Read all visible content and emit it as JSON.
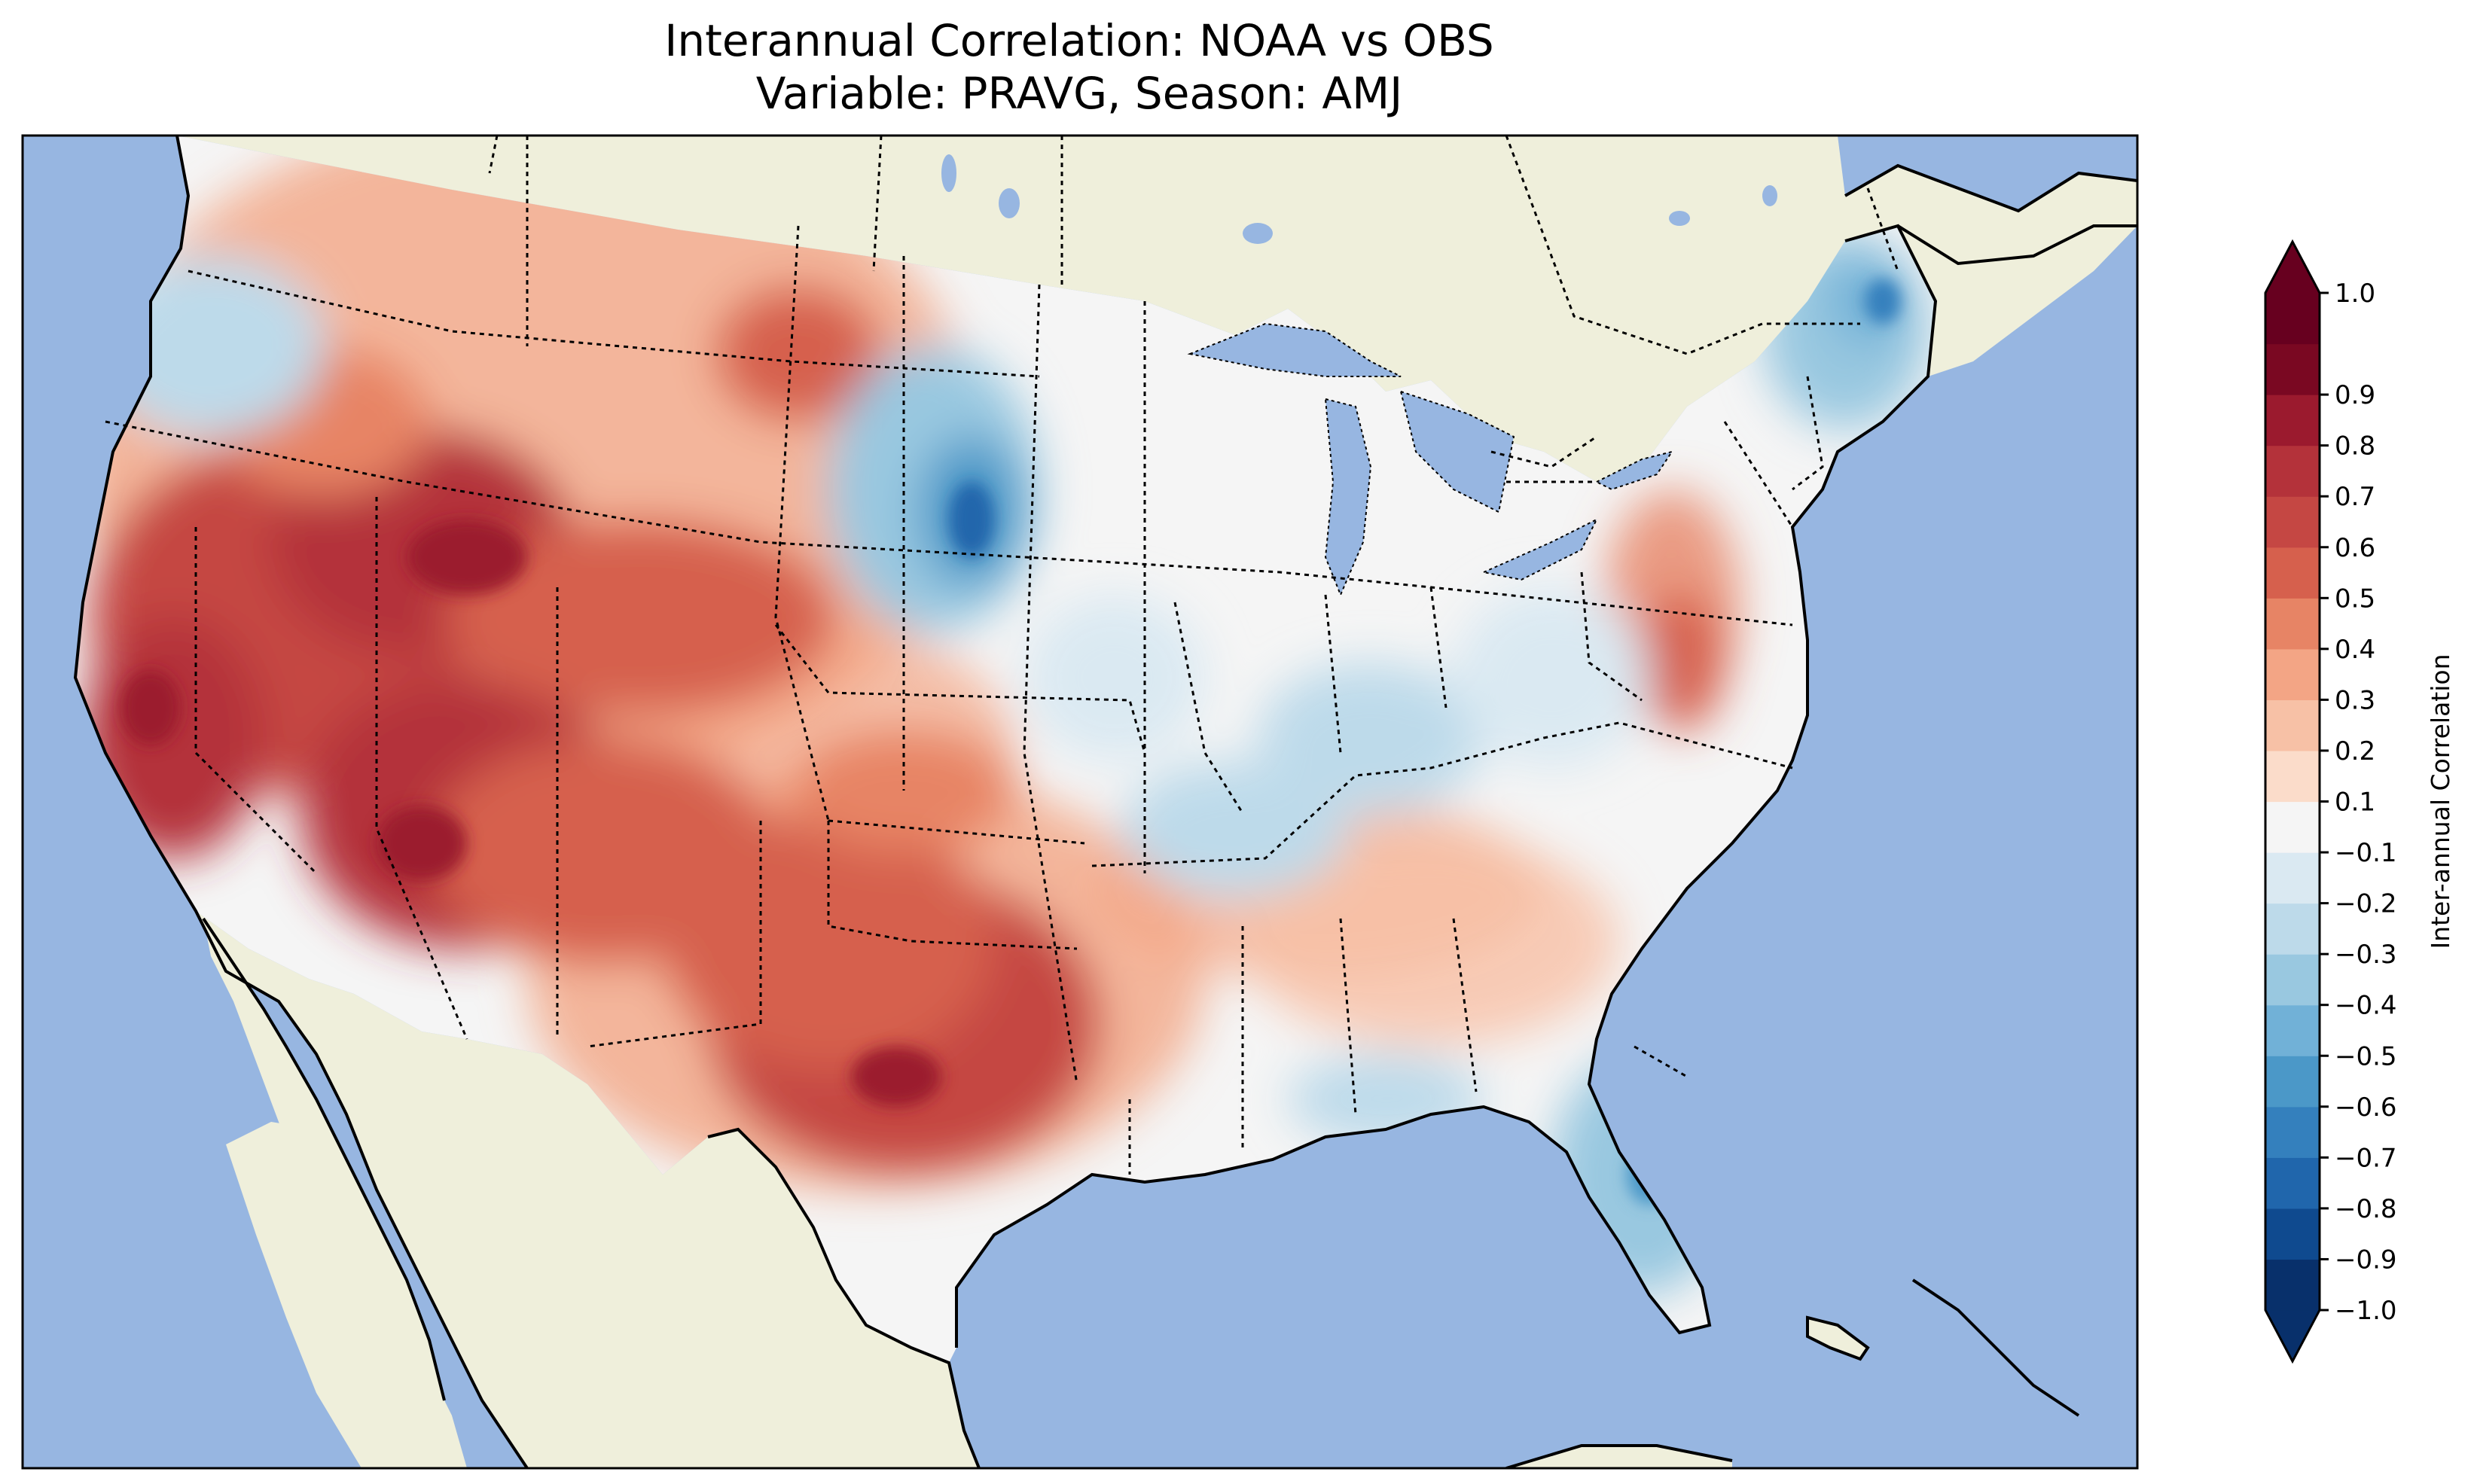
{
  "title": {
    "line1": "Interannual Correlation: NOAA vs OBS",
    "line2": "Variable: PRAVG, Season: AMJ"
  },
  "colorbar": {
    "label": "Inter-annual Correlation",
    "min": -1.0,
    "max": 1.0,
    "extend": "both",
    "ticks": [
      "−1.0",
      "−0.9",
      "−0.8",
      "−0.7",
      "−0.6",
      "−0.5",
      "−0.4",
      "−0.3",
      "−0.2",
      "−0.1",
      "0.1",
      "0.2",
      "0.3",
      "0.4",
      "0.5",
      "0.6",
      "0.7",
      "0.8",
      "0.9",
      "1.0"
    ],
    "colors": [
      "#08306b",
      "#0f4a8f",
      "#2066ac",
      "#3480bd",
      "#4b98c8",
      "#71b1d7",
      "#99c8e0",
      "#bddaea",
      "#dae9f2",
      "#f5f5f5",
      "#fbdcca",
      "#f7c1a6",
      "#f3a585",
      "#e78465",
      "#d6604d",
      "#c54743",
      "#b4323a",
      "#9b1a2e",
      "#7a0822",
      "#67001f"
    ]
  },
  "map": {
    "ocean_color": "#97b6e1",
    "land_color": "#efefdb",
    "colormap": "RdBu_r"
  }
}
